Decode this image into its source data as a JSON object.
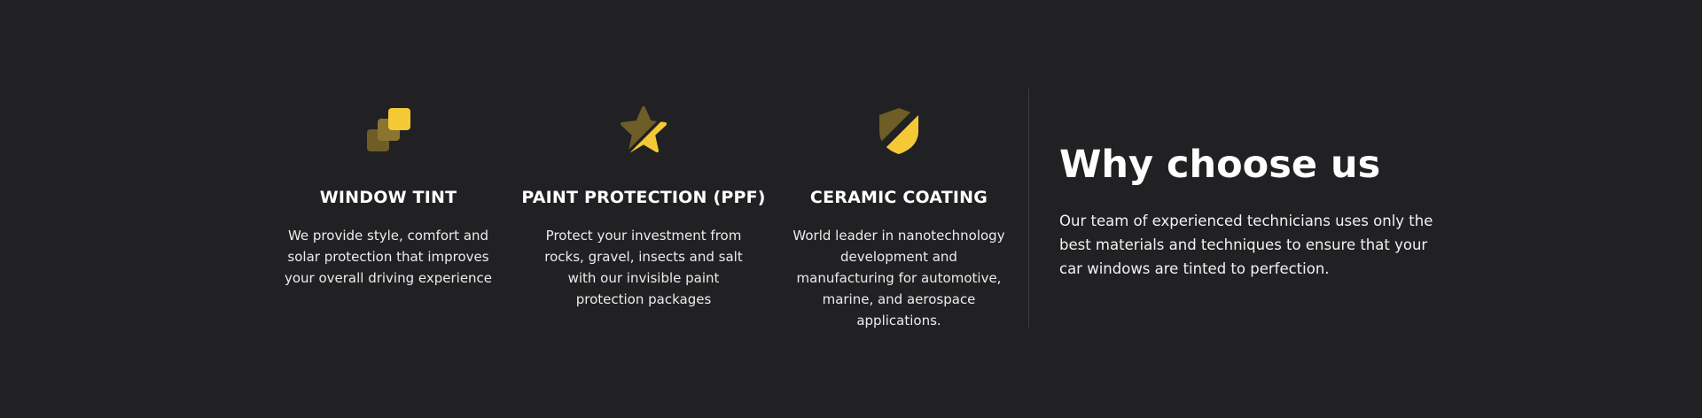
{
  "colors": {
    "background": "#212123",
    "accent": "#f5c936",
    "accent_dark": "#6e5d27",
    "text": "#ffffff"
  },
  "features": [
    {
      "icon": "layers-icon",
      "title": "WINDOW TINT",
      "description": "We provide style, comfort and solar protection that improves your overall driving experience"
    },
    {
      "icon": "star-icon",
      "title": "PAINT PROTECTION (PPF)",
      "description": "Protect your investment from rocks, gravel, insects and salt with our invisible paint protection packages"
    },
    {
      "icon": "shield-icon",
      "title": "CERAMIC COATING",
      "description": "World leader in nanotechnology development and manufacturing for automotive, marine, and aerospace applications."
    }
  ],
  "why": {
    "title": "Why choose us",
    "text": "Our team of experienced technicians uses only the best materials and techniques to ensure that your car windows are tinted to perfection."
  }
}
